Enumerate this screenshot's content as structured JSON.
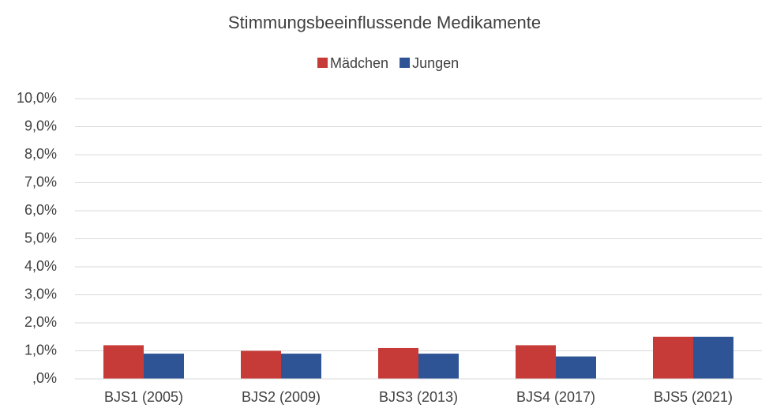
{
  "chart_data": {
    "type": "bar",
    "title": "Stimmungsbeeinflussende Medikamente",
    "categories": [
      "BJS1 (2005)",
      "BJS2 (2009)",
      "BJS3 (2013)",
      "BJS4 (2017)",
      "BJS5 (2021)"
    ],
    "series": [
      {
        "name": "Mädchen",
        "color": "#c63b37",
        "values": [
          1.2,
          1.0,
          1.1,
          1.2,
          1.5
        ]
      },
      {
        "name": "Jungen",
        "color": "#2f5496",
        "values": [
          0.9,
          0.9,
          0.9,
          0.8,
          1.5
        ]
      }
    ],
    "ylim": [
      0,
      10
    ],
    "yticks": [
      {
        "value": 0,
        "label": ",0%"
      },
      {
        "value": 1,
        "label": "1,0%"
      },
      {
        "value": 2,
        "label": "2,0%"
      },
      {
        "value": 3,
        "label": "3,0%"
      },
      {
        "value": 4,
        "label": "4,0%"
      },
      {
        "value": 5,
        "label": "5,0%"
      },
      {
        "value": 6,
        "label": "6,0%"
      },
      {
        "value": 7,
        "label": "7,0%"
      },
      {
        "value": 8,
        "label": "8,0%"
      },
      {
        "value": 9,
        "label": "9,0%"
      },
      {
        "value": 10,
        "label": "10,0%"
      }
    ],
    "grid": true,
    "legend": "top"
  }
}
